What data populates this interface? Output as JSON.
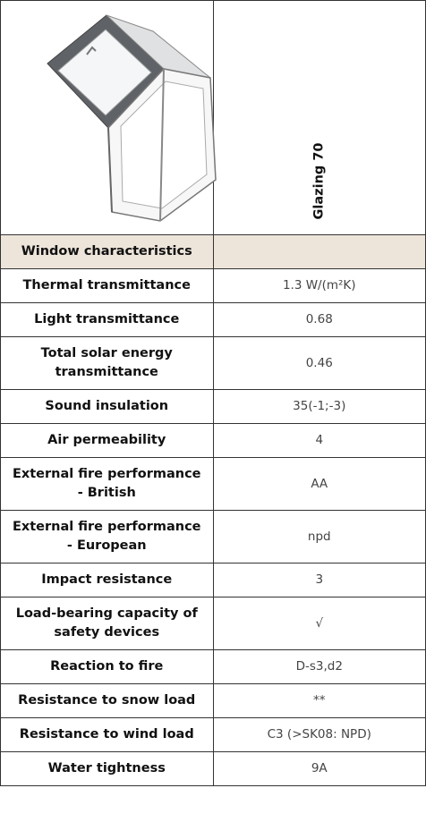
{
  "header": {
    "column_title": "Glazing 70"
  },
  "table": {
    "section": "Window characteristics",
    "rows": [
      [
        "Thermal transmittance",
        "1.3 W/(m²K)"
      ],
      [
        "Light transmittance",
        "0.68"
      ],
      [
        "Total solar energy transmittance",
        "0.46"
      ],
      [
        "Sound insulation",
        "35(-1;-3)"
      ],
      [
        "Air permeability",
        "4"
      ],
      [
        "External fire performance - British",
        "AA"
      ],
      [
        "External fire performance - European",
        "npd"
      ],
      [
        "Impact resistance",
        "3"
      ],
      [
        "Load-bearing capacity of safety devices",
        "√"
      ],
      [
        "Reaction to fire",
        "D-s3,d2"
      ],
      [
        "Resistance to snow load",
        "**"
      ],
      [
        "Resistance to wind load",
        "C3 (>SK08: NPD)"
      ],
      [
        "Water tightness",
        "9A"
      ]
    ]
  }
}
